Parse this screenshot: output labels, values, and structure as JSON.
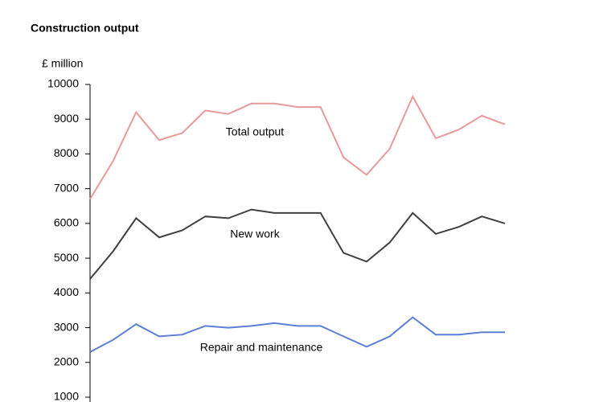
{
  "chart_data": {
    "type": "line",
    "title": "Construction output",
    "y_label": "£ million",
    "categories": [
      null,
      null,
      null,
      null,
      null,
      null,
      null,
      null,
      null,
      null,
      null,
      null,
      null,
      null,
      null,
      null,
      null,
      null,
      null
    ],
    "series": [
      {
        "name": "Total output",
        "color": "#e89a9a",
        "values": [
          6700,
          7800,
          9200,
          8400,
          8600,
          9250,
          9150,
          9450,
          9450,
          9350,
          9350,
          7900,
          7400,
          8150,
          9650,
          8450,
          8700,
          9100,
          8850
        ]
      },
      {
        "name": "New work",
        "color": "#404040",
        "values": [
          4400,
          5200,
          6150,
          5600,
          5800,
          6200,
          6150,
          6400,
          6300,
          6300,
          6300,
          5150,
          4900,
          5450,
          6300,
          5700,
          5900,
          6200,
          6000
        ]
      },
      {
        "name": "Repair and maintenance",
        "color": "#5b7fd4",
        "values": [
          2300,
          2650,
          3100,
          2750,
          2800,
          3050,
          3000,
          3050,
          3130,
          3050,
          3050,
          2750,
          2450,
          2750,
          3300,
          2800,
          2800,
          2870,
          2870
        ]
      }
    ],
    "ylim": [
      1000,
      10000
    ],
    "yticks": [
      1000,
      2000,
      3000,
      4000,
      5000,
      6000,
      7000,
      8000,
      9000,
      10000
    ]
  }
}
